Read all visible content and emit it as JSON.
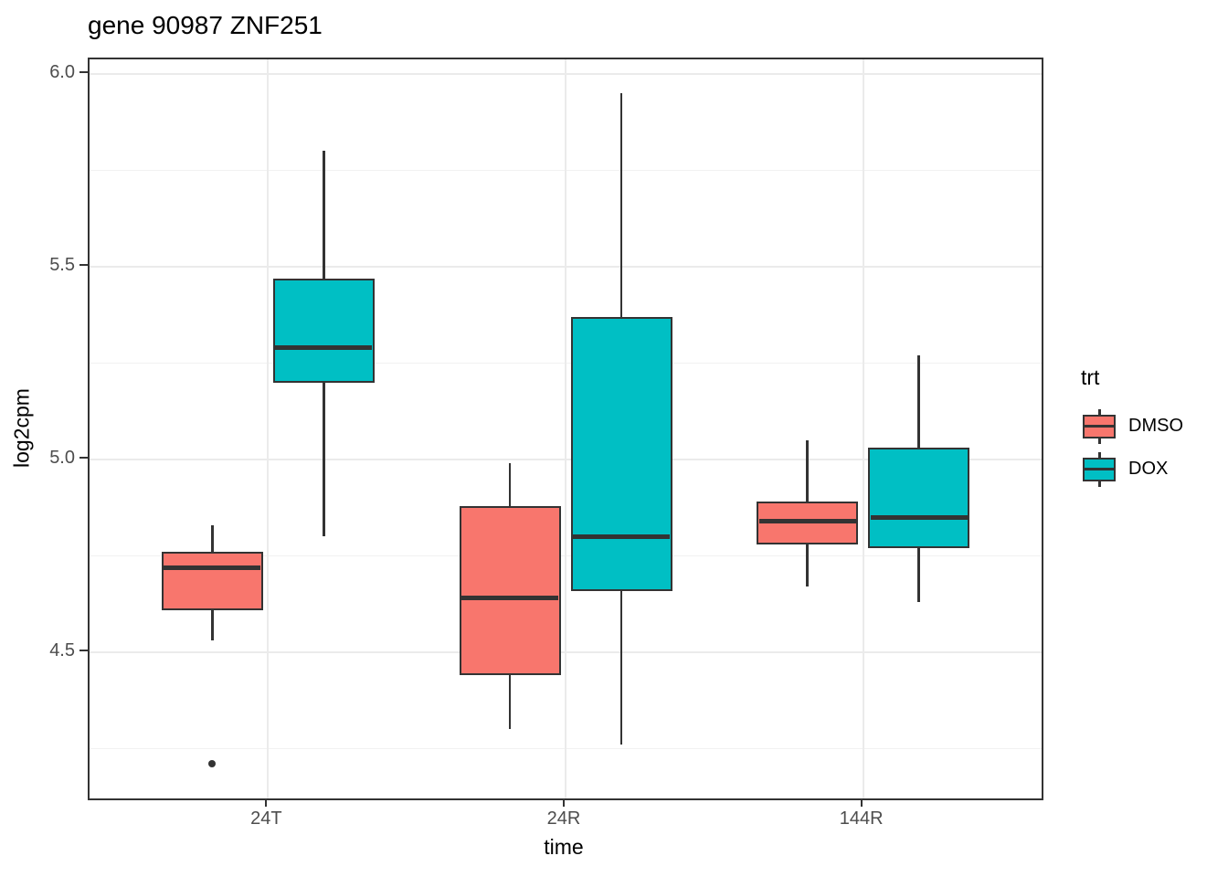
{
  "title": "gene 90987 ZNF251",
  "legend": {
    "title": "trt",
    "entries": [
      {
        "label": "DMSO",
        "color": "#F8766D"
      },
      {
        "label": "DOX",
        "color": "#00BFC4"
      }
    ]
  },
  "colors": {
    "dmso_fill": "#F8766D",
    "dox_fill": "#00BFC4",
    "box_border": "#333333",
    "median": "#333333",
    "whisker": "#333333",
    "outlier": "#333333",
    "panel_border": "#333333",
    "grid_major": "#EBEBEB",
    "grid_minor": "#F1F1F1",
    "tick_mark": "#333333",
    "tick_label": "#4D4D4D",
    "axis_title": "#000000"
  },
  "chart_data": {
    "type": "boxplot",
    "title": "gene 90987 ZNF251",
    "xlabel": "time",
    "ylabel": "log2cpm",
    "categories": [
      "24T",
      "24R",
      "144R"
    ],
    "y_ticks": [
      {
        "label": "6.0",
        "value": 6.0
      },
      {
        "label": "5.5",
        "value": 5.5
      },
      {
        "label": "5.0",
        "value": 5.0
      },
      {
        "label": "4.5",
        "value": 4.5
      }
    ],
    "y_minor_ticks": [
      5.75,
      5.25,
      4.75,
      4.25
    ],
    "ylim": [
      4.121,
      6.038
    ],
    "grid": true,
    "legend_position": "right",
    "series": [
      {
        "name": "DMSO",
        "color": "#F8766D",
        "boxes": [
          {
            "category": "24T",
            "whisker_low": 4.53,
            "q1": 4.61,
            "median": 4.72,
            "q3": 4.76,
            "whisker_high": 4.83,
            "outliers": [
              4.21
            ]
          },
          {
            "category": "24R",
            "whisker_low": 4.3,
            "q1": 4.44,
            "median": 4.64,
            "q3": 4.88,
            "whisker_high": 4.99,
            "outliers": []
          },
          {
            "category": "144R",
            "whisker_low": 4.67,
            "q1": 4.78,
            "median": 4.84,
            "q3": 4.89,
            "whisker_high": 5.05,
            "outliers": []
          }
        ]
      },
      {
        "name": "DOX",
        "color": "#00BFC4",
        "boxes": [
          {
            "category": "24T",
            "whisker_low": 4.8,
            "q1": 5.2,
            "median": 5.29,
            "q3": 5.47,
            "whisker_high": 5.8,
            "outliers": []
          },
          {
            "category": "24R",
            "whisker_low": 4.26,
            "q1": 4.66,
            "median": 4.8,
            "q3": 5.37,
            "whisker_high": 5.95,
            "outliers": []
          },
          {
            "category": "144R",
            "whisker_low": 4.63,
            "q1": 4.77,
            "median": 4.85,
            "q3": 5.03,
            "whisker_high": 5.27,
            "outliers": []
          }
        ]
      }
    ]
  }
}
